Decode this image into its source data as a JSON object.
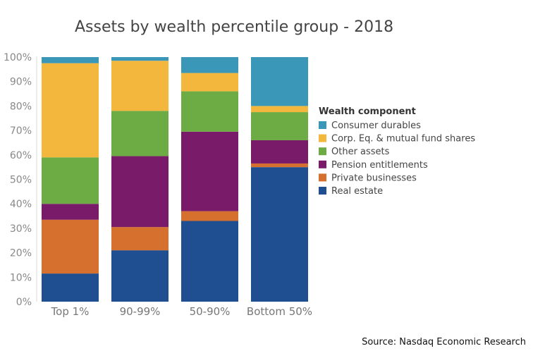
{
  "chart_data": {
    "type": "bar",
    "stacked": true,
    "title": "Assets by wealth percentile group - 2018",
    "categories": [
      "Top 1%",
      "90-99%",
      "50-90%",
      "Bottom 50%"
    ],
    "ylim": [
      0,
      100
    ],
    "yticks": [
      "0%",
      "10%",
      "20%",
      "30%",
      "40%",
      "50%",
      "60%",
      "70%",
      "80%",
      "90%",
      "100%"
    ],
    "legend_title": "Wealth component",
    "legend_position": "right",
    "series": [
      {
        "name": "Real estate",
        "color": "#1F4E91",
        "values": [
          11.5,
          21,
          33,
          55
        ]
      },
      {
        "name": "Private businesses",
        "color": "#D6702F",
        "values": [
          22,
          9.5,
          4,
          1.5
        ]
      },
      {
        "name": "Pension entitlements",
        "color": "#7A1B69",
        "values": [
          6.5,
          29,
          32.5,
          9.5
        ]
      },
      {
        "name": "Other assets",
        "color": "#6DAB44",
        "values": [
          19,
          18.5,
          16.5,
          11.5
        ]
      },
      {
        "name": "Corp. Eq. & mutual fund shares",
        "color": "#F3B73E",
        "values": [
          38.5,
          20.5,
          7.5,
          2.5
        ]
      },
      {
        "name": "Consumer durables",
        "color": "#3A97B8",
        "values": [
          2.5,
          1.5,
          6.5,
          20
        ]
      }
    ],
    "legend_order": [
      "Consumer durables",
      "Corp. Eq. & mutual fund shares",
      "Other assets",
      "Pension entitlements",
      "Private businesses",
      "Real estate"
    ],
    "grid": false
  },
  "source": "Source: Nasdaq Economic Research"
}
